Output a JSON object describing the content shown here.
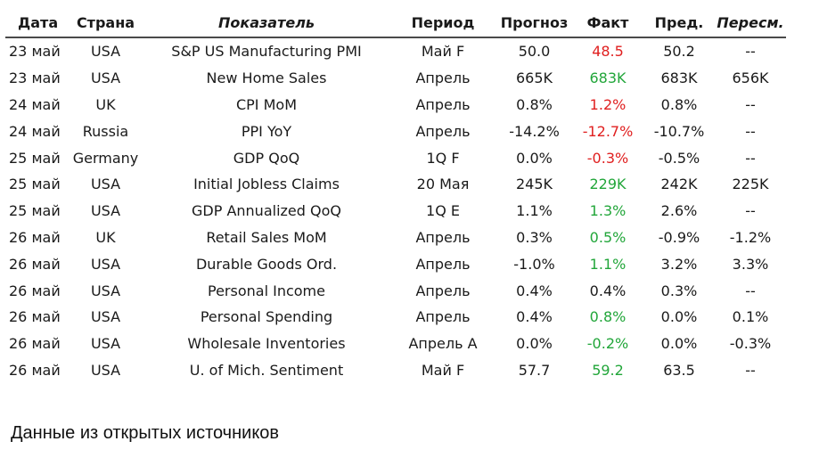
{
  "table": {
    "headers": {
      "date": "Дата",
      "country": "Страна",
      "indicator": "Показатель",
      "period": "Период",
      "forecast": "Прогноз",
      "actual": "Факт",
      "previous": "Пред.",
      "revised": "Пересм."
    },
    "rows": [
      {
        "date": "23 май",
        "country": "USA",
        "indicator": "S&P US Manufacturing PMI",
        "period": "Май F",
        "forecast": "50.0",
        "actual": "48.5",
        "previous": "50.2",
        "revised": "--"
      },
      {
        "date": "23 май",
        "country": "USA",
        "indicator": "New Home Sales",
        "period": "Апрель",
        "forecast": "665K",
        "actual": "683K",
        "previous": "683K",
        "revised": "656K"
      },
      {
        "date": "24 май",
        "country": "UK",
        "indicator": "CPI MoM",
        "period": "Апрель",
        "forecast": "0.8%",
        "actual": "1.2%",
        "previous": "0.8%",
        "revised": "--"
      },
      {
        "date": "24 май",
        "country": "Russia",
        "indicator": "PPI YoY",
        "period": "Апрель",
        "forecast": "-14.2%",
        "actual": "-12.7%",
        "previous": "-10.7%",
        "revised": "--"
      },
      {
        "date": "25 май",
        "country": "Germany",
        "indicator": "GDP QoQ",
        "period": "1Q F",
        "forecast": "0.0%",
        "actual": "-0.3%",
        "previous": "-0.5%",
        "revised": "--"
      },
      {
        "date": "25 май",
        "country": "USA",
        "indicator": "Initial Jobless Claims",
        "period": "20 Мая",
        "forecast": "245K",
        "actual": "229K",
        "previous": "242K",
        "revised": "225K"
      },
      {
        "date": "25 май",
        "country": "USA",
        "indicator": "GDP Annualized QoQ",
        "period": "1Q E",
        "forecast": "1.1%",
        "actual": "1.3%",
        "previous": "2.6%",
        "revised": "--"
      },
      {
        "date": "26 май",
        "country": "UK",
        "indicator": "Retail Sales MoM",
        "period": "Апрель",
        "forecast": "0.3%",
        "actual": "0.5%",
        "previous": "-0.9%",
        "revised": "-1.2%"
      },
      {
        "date": "26 май",
        "country": "USA",
        "indicator": "Durable Goods Ord.",
        "period": "Апрель",
        "forecast": "-1.0%",
        "actual": "1.1%",
        "previous": "3.2%",
        "revised": "3.3%"
      },
      {
        "date": "26 май",
        "country": "USA",
        "indicator": "Personal Income",
        "period": "Апрель",
        "forecast": "0.4%",
        "actual": "0.4%",
        "previous": "0.3%",
        "revised": "--"
      },
      {
        "date": "26 май",
        "country": "USA",
        "indicator": "Personal Spending",
        "period": "Апрель",
        "forecast": "0.4%",
        "actual": "0.8%",
        "previous": "0.0%",
        "revised": "0.1%"
      },
      {
        "date": "26 май",
        "country": "USA",
        "indicator": "Wholesale Inventories",
        "period": "Апрель A",
        "forecast": "0.0%",
        "actual": "-0.2%",
        "previous": "0.0%",
        "revised": "-0.3%"
      },
      {
        "date": "26 май",
        "country": "USA",
        "indicator": "U. of Mich. Sentiment",
        "period": "Май F",
        "forecast": "57.7",
        "actual": "59.2",
        "previous": "63.5",
        "revised": "--"
      }
    ]
  },
  "footer": {
    "text": "Данные из открытых источников"
  },
  "colors": {
    "worse": "#e02020",
    "better": "#22a63a",
    "neutral": "#1a1a1a"
  }
}
